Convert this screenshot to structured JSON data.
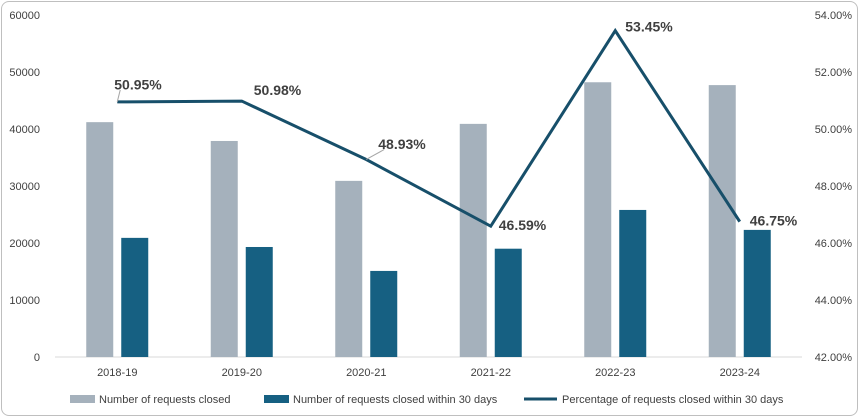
{
  "chart_data": {
    "type": "bar",
    "categories": [
      "2018-19",
      "2019-20",
      "2020-21",
      "2021-22",
      "2022-23",
      "2023-24"
    ],
    "series": [
      {
        "name": "Number of requests closed",
        "type": "bar",
        "axis": "left",
        "color": "#a5b1bc",
        "values": [
          41200,
          37900,
          30900,
          40900,
          48200,
          47700
        ]
      },
      {
        "name": "Number of requests closed within 30 days",
        "type": "bar",
        "axis": "left",
        "color": "#166082",
        "values": [
          20900,
          19300,
          15100,
          19000,
          25800,
          22300
        ]
      },
      {
        "name": "Percentage of requests closed within 30 days",
        "type": "line",
        "axis": "right",
        "color": "#174f6a",
        "values": [
          50.95,
          50.98,
          48.93,
          46.59,
          53.45,
          46.75
        ],
        "labels": [
          "50.95%",
          "50.98%",
          "48.93%",
          "46.59%",
          "53.45%",
          "46.75%"
        ]
      }
    ],
    "y_left": {
      "ylim": [
        0,
        60000
      ],
      "ticks": [
        0,
        10000,
        20000,
        30000,
        40000,
        50000,
        60000
      ],
      "tick_labels": [
        "0",
        "10000",
        "20000",
        "30000",
        "40000",
        "50000",
        "60000"
      ]
    },
    "y_right": {
      "ylim": [
        42,
        54
      ],
      "ticks": [
        42,
        44,
        46,
        48,
        50,
        52,
        54
      ],
      "tick_labels": [
        "42.00%",
        "44.00%",
        "46.00%",
        "48.00%",
        "50.00%",
        "52.00%",
        "54.00%"
      ]
    },
    "grid": false,
    "legend": "bottom"
  }
}
